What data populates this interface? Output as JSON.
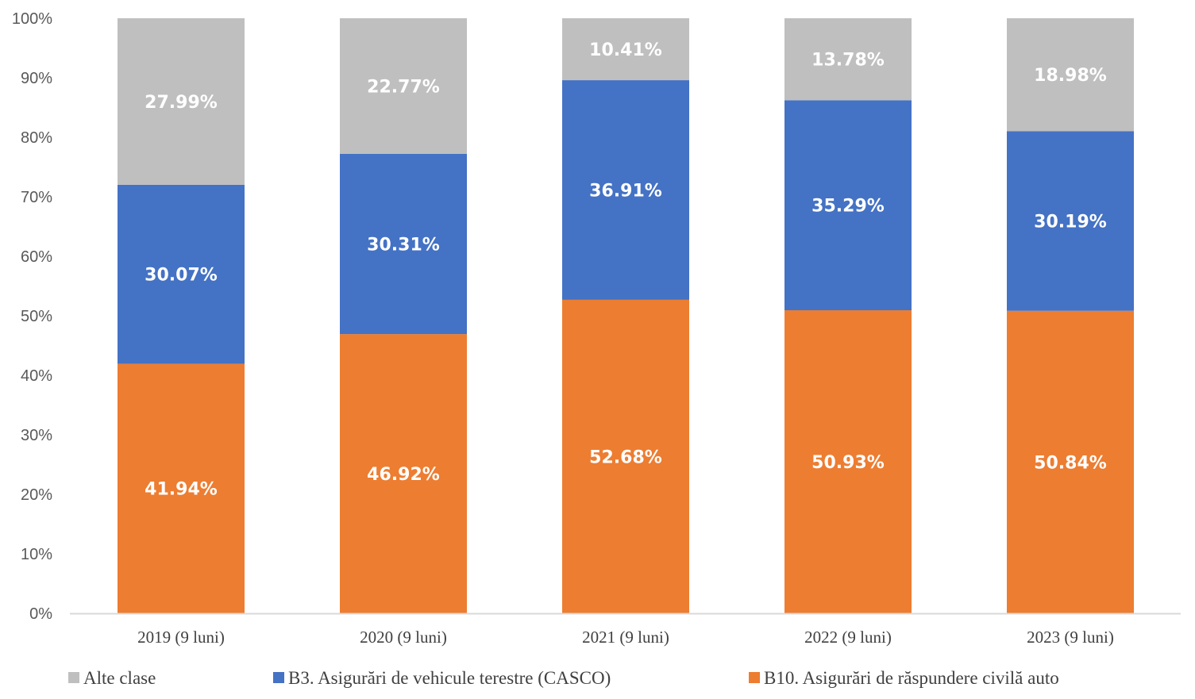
{
  "chart_data": {
    "type": "bar",
    "stacked": true,
    "percent_stacked": true,
    "title": "",
    "xlabel": "",
    "ylabel": "",
    "ylim": [
      0,
      100
    ],
    "y_ticks": [
      "0%",
      "10%",
      "20%",
      "30%",
      "40%",
      "50%",
      "60%",
      "70%",
      "80%",
      "90%",
      "100%"
    ],
    "grid": false,
    "legend_position": "bottom",
    "categories": [
      "2019 (9 luni)",
      "2020 (9 luni)",
      "2021 (9 luni)",
      "2022 (9 luni)",
      "2023 (9 luni)"
    ],
    "series": [
      {
        "name": "B10. Asigurări de răspundere civilă auto",
        "color": "#ED7D31",
        "values": [
          41.94,
          46.92,
          52.68,
          50.93,
          50.84
        ],
        "labels": [
          "41.94%",
          "46.92%",
          "52.68%",
          "50.93%",
          "50.84%"
        ]
      },
      {
        "name": "B3. Asigurări de vehicule terestre (CASCO)",
        "color": "#4472C4",
        "values": [
          30.07,
          30.31,
          36.91,
          35.29,
          30.19
        ],
        "labels": [
          "30.07%",
          "30.31%",
          "36.91%",
          "35.29%",
          "30.19%"
        ]
      },
      {
        "name": "Alte clase",
        "color": "#BFBFBF",
        "values": [
          27.99,
          22.77,
          10.41,
          13.78,
          18.98
        ],
        "labels": [
          "27.99%",
          "22.77%",
          "10.41%",
          "13.78%",
          "18.98%"
        ]
      }
    ],
    "legend_order": [
      "Alte clase",
      "B3. Asigurări de vehicule terestre (CASCO)",
      "B10. Asigurări de răspundere civilă auto"
    ]
  }
}
